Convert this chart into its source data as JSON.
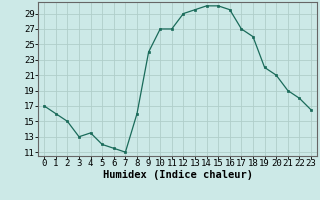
{
  "x": [
    0,
    1,
    2,
    3,
    4,
    5,
    6,
    7,
    8,
    9,
    10,
    11,
    12,
    13,
    14,
    15,
    16,
    17,
    18,
    19,
    20,
    21,
    22,
    23
  ],
  "y": [
    17,
    16,
    15,
    13,
    13.5,
    12,
    11.5,
    11,
    16,
    24,
    27,
    27,
    29,
    29.5,
    30,
    30,
    29.5,
    27,
    26,
    22,
    21,
    19,
    18,
    16.5
  ],
  "line_color": "#1a6b5a",
  "marker_color": "#1a6b5a",
  "bg_color": "#cce9e7",
  "grid_color": "#b0ceca",
  "xlabel": "Humidex (Indice chaleur)",
  "ylabel_ticks": [
    11,
    13,
    15,
    17,
    19,
    21,
    23,
    25,
    27,
    29
  ],
  "xlim": [
    -0.5,
    23.5
  ],
  "ylim": [
    10.5,
    30.5
  ],
  "xlabel_fontsize": 7.5,
  "tick_fontsize": 6.5
}
